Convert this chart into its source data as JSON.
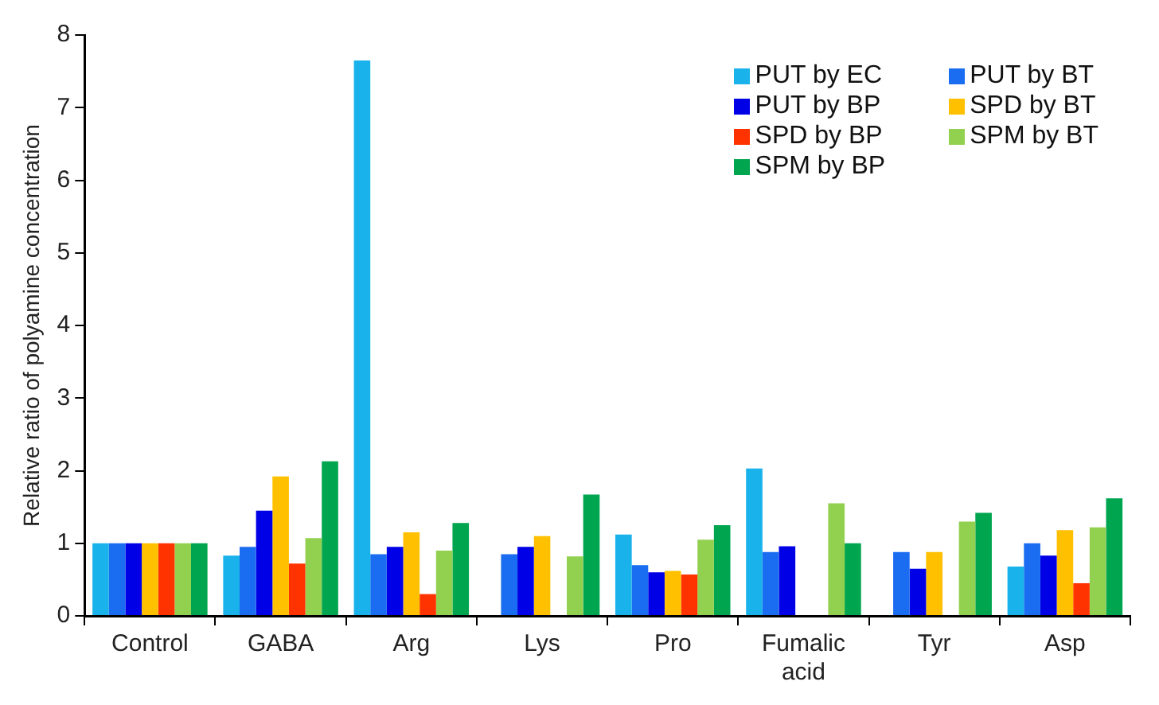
{
  "chart_data": {
    "type": "bar",
    "ylabel": "Relative ratio of polyamine concentration",
    "categories": [
      "Control",
      "GABA",
      "Arg",
      "Lys",
      "Pro",
      "Fumalic acid",
      "Tyr",
      "Asp"
    ],
    "series": [
      {
        "name": "PUT by EC",
        "color": "#1ab2ea",
        "values": [
          1,
          0.83,
          7.65,
          null,
          1.12,
          2.03,
          null,
          0.68
        ]
      },
      {
        "name": "PUT by BT",
        "color": "#1a6cf0",
        "values": [
          1,
          0.95,
          0.85,
          0.85,
          0.7,
          0.88,
          0.88,
          1.0
        ]
      },
      {
        "name": "PUT by BP",
        "color": "#0000e6",
        "values": [
          1,
          1.45,
          0.95,
          0.95,
          0.6,
          0.96,
          0.65,
          0.83
        ]
      },
      {
        "name": "SPD by BT",
        "color": "#ffc000",
        "values": [
          1,
          1.92,
          1.15,
          1.1,
          0.62,
          null,
          0.88,
          1.18
        ]
      },
      {
        "name": "SPD by BP",
        "color": "#ff3300",
        "values": [
          1,
          0.72,
          0.3,
          null,
          0.57,
          null,
          null,
          0.45
        ]
      },
      {
        "name": "SPM by BT",
        "color": "#92d050",
        "values": [
          1,
          1.07,
          0.9,
          0.82,
          1.05,
          1.55,
          1.3,
          1.22
        ]
      },
      {
        "name": "SPM by BP",
        "color": "#00a550",
        "values": [
          1,
          2.13,
          1.28,
          1.67,
          1.25,
          1.0,
          1.42,
          1.62
        ]
      }
    ],
    "ylim": [
      0,
      8
    ],
    "yticks": [
      0,
      1,
      2,
      3,
      4,
      5,
      6,
      7,
      8
    ],
    "grid": false,
    "legend": "top right"
  }
}
